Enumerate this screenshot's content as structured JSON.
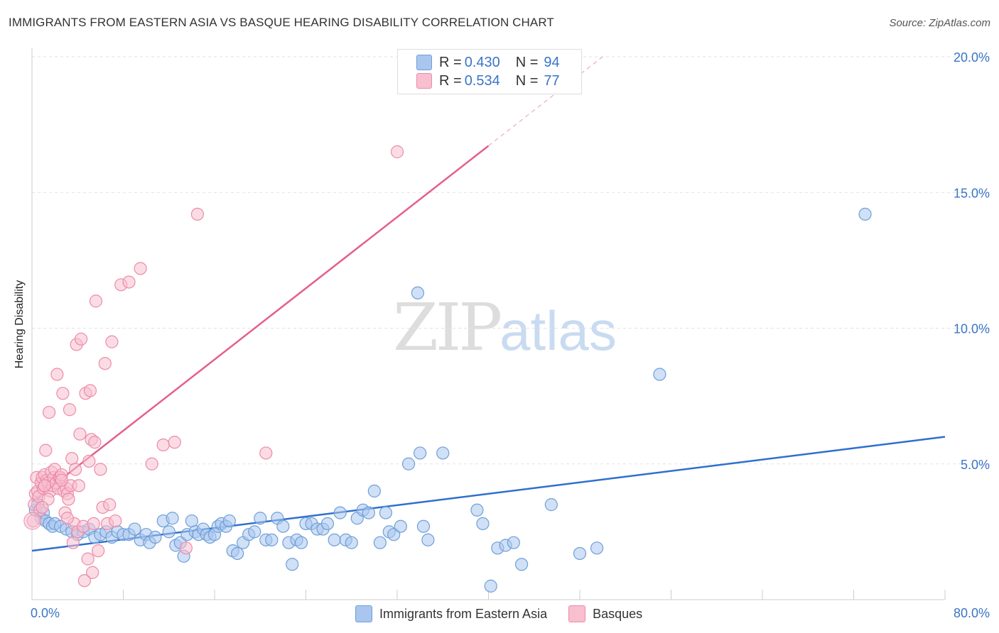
{
  "chart_data": {
    "type": "scatter",
    "title": "IMMIGRANTS FROM EASTERN ASIA VS BASQUE HEARING DISABILITY CORRELATION CHART",
    "source": "Source: ZipAtlas.com",
    "ylabel": "Hearing Disability",
    "xlim": [
      0,
      80
    ],
    "ylim": [
      0,
      20
    ],
    "x_tick_labels": [
      "0.0%",
      "80.0%"
    ],
    "y_ticks": [
      5,
      10,
      15,
      20
    ],
    "y_tick_labels": [
      "5.0%",
      "10.0%",
      "15.0%",
      "20.0%"
    ],
    "watermark": {
      "zip": "ZIP",
      "atlas": "atlas"
    },
    "legend_box": [
      {
        "r_label": "R =",
        "r": "0.430",
        "n_label": "N =",
        "n": "94"
      },
      {
        "r_label": "R =",
        "r": "0.534",
        "n_label": "N =",
        "n": "77"
      }
    ],
    "series": [
      {
        "name": "Immigrants from Eastern Asia",
        "color": "#6f9fd8",
        "fill": "#a9c6ee",
        "line_color": "#2f6fce",
        "trend": {
          "x0": 0,
          "y0": 1.8,
          "x1": 80,
          "y1": 6.0,
          "dashed_from": null
        },
        "points": [
          [
            0.3,
            3.3
          ],
          [
            0.5,
            3.5
          ],
          [
            0.8,
            3.0
          ],
          [
            1.0,
            3.2
          ],
          [
            1.2,
            2.9
          ],
          [
            1.5,
            2.8
          ],
          [
            1.8,
            2.7
          ],
          [
            2.0,
            2.8
          ],
          [
            2.5,
            2.7
          ],
          [
            3.0,
            2.6
          ],
          [
            3.5,
            2.5
          ],
          [
            4.0,
            2.4
          ],
          [
            4.5,
            2.5
          ],
          [
            5.0,
            2.6
          ],
          [
            5.5,
            2.3
          ],
          [
            6.0,
            2.4
          ],
          [
            6.5,
            2.5
          ],
          [
            7.0,
            2.3
          ],
          [
            7.5,
            2.5
          ],
          [
            8.0,
            2.4
          ],
          [
            8.5,
            2.4
          ],
          [
            9.0,
            2.6
          ],
          [
            9.5,
            2.2
          ],
          [
            10.0,
            2.4
          ],
          [
            10.3,
            2.1
          ],
          [
            10.8,
            2.3
          ],
          [
            11.5,
            2.9
          ],
          [
            12.0,
            2.5
          ],
          [
            12.3,
            3.0
          ],
          [
            12.6,
            2.0
          ],
          [
            13.0,
            2.1
          ],
          [
            13.3,
            1.6
          ],
          [
            13.6,
            2.4
          ],
          [
            14.0,
            2.9
          ],
          [
            14.3,
            2.5
          ],
          [
            14.6,
            2.4
          ],
          [
            15.0,
            2.6
          ],
          [
            15.3,
            2.4
          ],
          [
            15.6,
            2.3
          ],
          [
            16.0,
            2.4
          ],
          [
            16.3,
            2.7
          ],
          [
            16.6,
            2.8
          ],
          [
            17.0,
            2.7
          ],
          [
            17.3,
            2.9
          ],
          [
            17.6,
            1.8
          ],
          [
            18.0,
            1.7
          ],
          [
            18.5,
            2.1
          ],
          [
            19.0,
            2.4
          ],
          [
            19.5,
            2.5
          ],
          [
            20.0,
            3.0
          ],
          [
            20.5,
            2.2
          ],
          [
            21.0,
            2.2
          ],
          [
            21.5,
            3.0
          ],
          [
            22.0,
            2.7
          ],
          [
            22.5,
            2.1
          ],
          [
            22.8,
            1.3
          ],
          [
            23.2,
            2.2
          ],
          [
            23.6,
            2.1
          ],
          [
            24.0,
            2.8
          ],
          [
            24.5,
            2.8
          ],
          [
            25.0,
            2.6
          ],
          [
            25.5,
            2.6
          ],
          [
            25.9,
            2.8
          ],
          [
            26.5,
            2.2
          ],
          [
            27.0,
            3.2
          ],
          [
            27.5,
            2.2
          ],
          [
            28.0,
            2.1
          ],
          [
            28.5,
            3.0
          ],
          [
            29.0,
            3.3
          ],
          [
            29.5,
            3.2
          ],
          [
            30.0,
            4.0
          ],
          [
            30.5,
            2.1
          ],
          [
            31.0,
            3.2
          ],
          [
            31.3,
            2.5
          ],
          [
            31.7,
            2.4
          ],
          [
            32.3,
            2.7
          ],
          [
            33.0,
            5.0
          ],
          [
            33.8,
            11.3
          ],
          [
            34.0,
            5.4
          ],
          [
            34.3,
            2.7
          ],
          [
            34.7,
            2.2
          ],
          [
            36.0,
            5.4
          ],
          [
            39.0,
            3.3
          ],
          [
            39.5,
            2.8
          ],
          [
            40.2,
            0.5
          ],
          [
            40.8,
            1.9
          ],
          [
            41.5,
            2.0
          ],
          [
            42.2,
            2.1
          ],
          [
            42.9,
            1.3
          ],
          [
            45.5,
            3.5
          ],
          [
            48.0,
            1.7
          ],
          [
            49.5,
            1.9
          ],
          [
            55.0,
            8.3
          ],
          [
            73.0,
            14.2
          ]
        ]
      },
      {
        "name": "Basques",
        "color": "#ec8ba8",
        "fill": "#f8bfd0",
        "line_color": "#e35f8c",
        "trend": {
          "x0": 0,
          "y0": 3.6,
          "x1": 50,
          "y1": 20.0,
          "solid_to": 40
        },
        "points": [
          [
            0.1,
            2.9
          ],
          [
            0.2,
            3.5
          ],
          [
            0.3,
            3.9
          ],
          [
            0.4,
            4.5
          ],
          [
            0.5,
            4.0
          ],
          [
            0.6,
            3.8
          ],
          [
            0.7,
            3.3
          ],
          [
            0.8,
            4.3
          ],
          [
            0.9,
            4.5
          ],
          [
            1.0,
            4.1
          ],
          [
            1.1,
            4.6
          ],
          [
            1.2,
            5.5
          ],
          [
            1.3,
            4.4
          ],
          [
            1.4,
            4.3
          ],
          [
            1.5,
            6.9
          ],
          [
            1.6,
            4.0
          ],
          [
            1.7,
            4.7
          ],
          [
            1.8,
            4.2
          ],
          [
            1.9,
            4.5
          ],
          [
            2.0,
            4.8
          ],
          [
            2.1,
            4.3
          ],
          [
            2.2,
            8.3
          ],
          [
            2.3,
            4.1
          ],
          [
            2.4,
            4.5
          ],
          [
            2.5,
            4.5
          ],
          [
            2.6,
            4.6
          ],
          [
            2.7,
            7.6
          ],
          [
            2.8,
            4.0
          ],
          [
            2.9,
            3.2
          ],
          [
            3.0,
            4.1
          ],
          [
            3.1,
            3.9
          ],
          [
            3.2,
            3.7
          ],
          [
            3.3,
            7.0
          ],
          [
            3.4,
            4.2
          ],
          [
            3.5,
            5.2
          ],
          [
            3.6,
            2.1
          ],
          [
            3.7,
            2.8
          ],
          [
            3.8,
            4.8
          ],
          [
            3.9,
            9.4
          ],
          [
            4.0,
            2.5
          ],
          [
            4.1,
            4.2
          ],
          [
            4.2,
            6.1
          ],
          [
            4.3,
            9.6
          ],
          [
            4.5,
            2.7
          ],
          [
            4.7,
            7.6
          ],
          [
            4.9,
            1.5
          ],
          [
            5.0,
            5.1
          ],
          [
            5.1,
            7.7
          ],
          [
            5.2,
            5.9
          ],
          [
            5.3,
            1.0
          ],
          [
            5.4,
            2.8
          ],
          [
            5.5,
            5.8
          ],
          [
            5.6,
            11.0
          ],
          [
            5.8,
            1.8
          ],
          [
            6.0,
            4.8
          ],
          [
            6.2,
            3.4
          ],
          [
            6.4,
            8.7
          ],
          [
            6.6,
            2.8
          ],
          [
            6.8,
            3.5
          ],
          [
            7.0,
            9.5
          ],
          [
            7.3,
            2.9
          ],
          [
            7.8,
            11.6
          ],
          [
            8.5,
            11.7
          ],
          [
            9.5,
            12.2
          ],
          [
            10.5,
            5.0
          ],
          [
            11.5,
            5.7
          ],
          [
            12.5,
            5.8
          ],
          [
            13.5,
            1.9
          ],
          [
            14.5,
            14.2
          ],
          [
            20.5,
            5.4
          ],
          [
            32.0,
            16.5
          ],
          [
            4.6,
            0.7
          ],
          [
            3.1,
            3.0
          ],
          [
            1.4,
            3.7
          ],
          [
            0.9,
            3.4
          ],
          [
            2.6,
            4.4
          ],
          [
            1.1,
            4.2
          ]
        ]
      }
    ]
  }
}
